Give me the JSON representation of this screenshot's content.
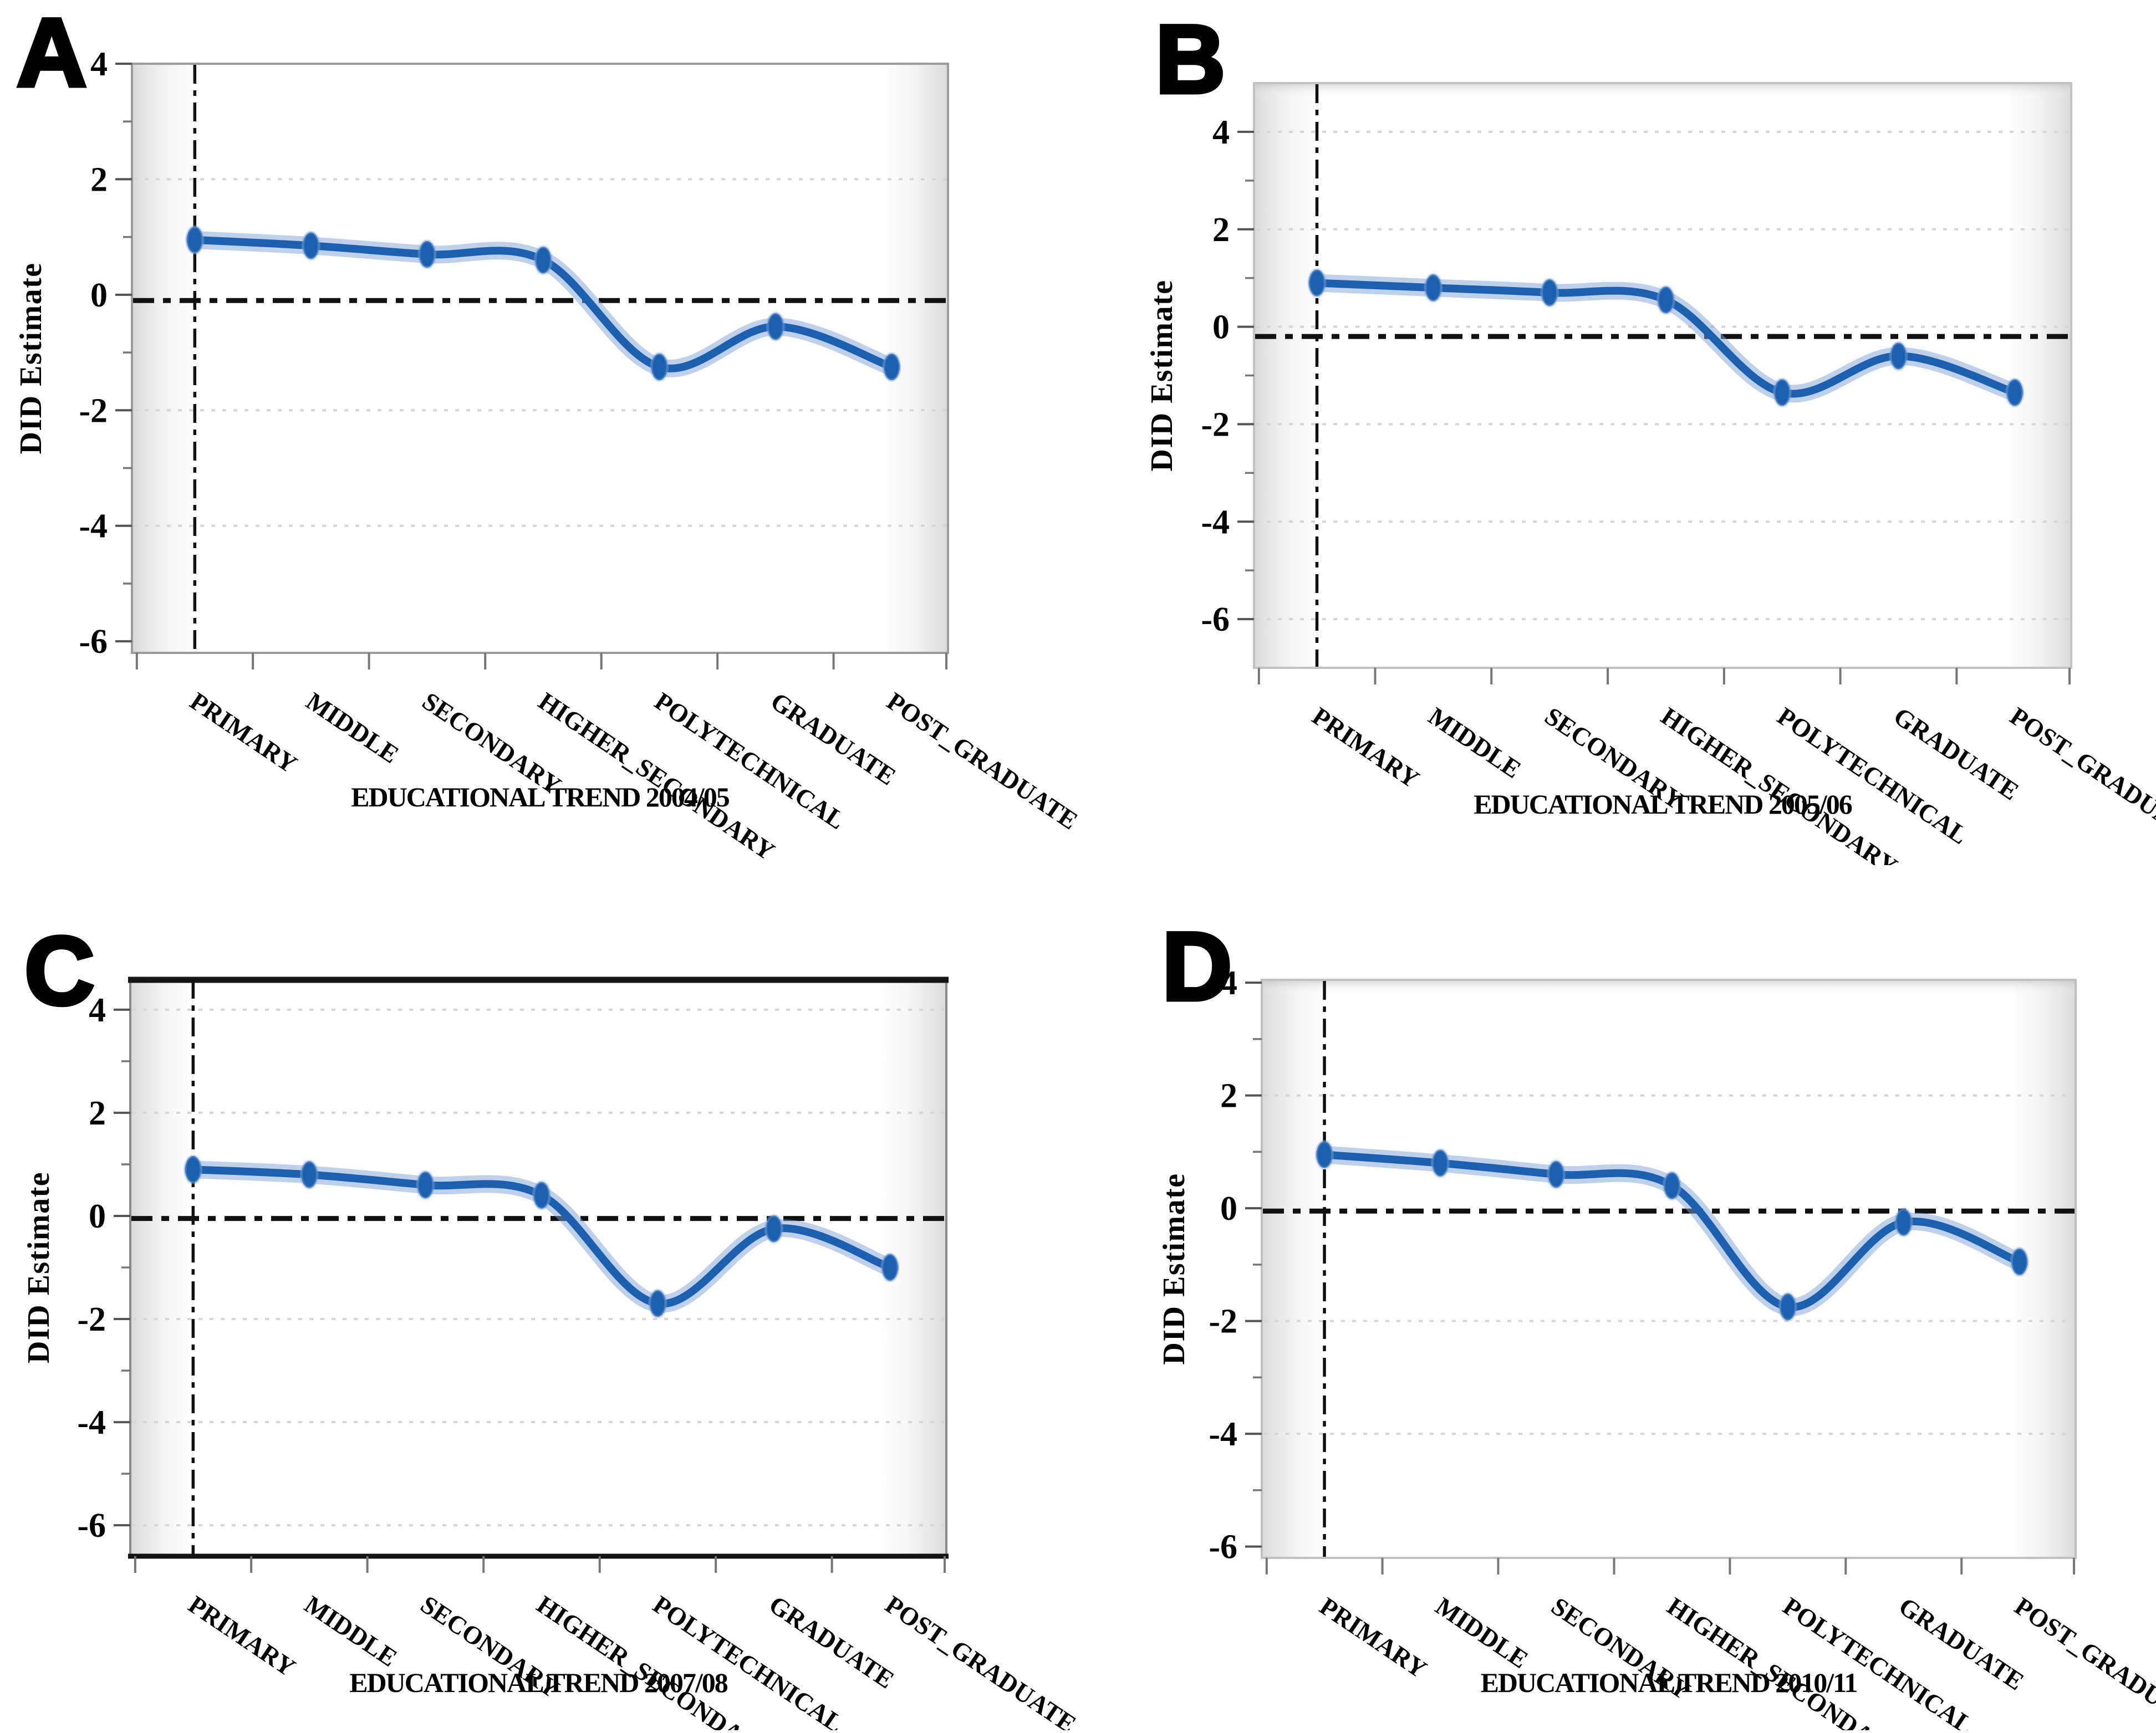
{
  "figure": {
    "ylabel": "DID Estimate",
    "series_color": "#1b5fae",
    "series_halo_color": "rgba(125,162,214,0.5)",
    "grid_color": "#d6d6d6",
    "reference_line_color": "#111111",
    "edge_band_color": "#bdbdbd",
    "text_color": "#000000"
  },
  "chart_data": [
    {
      "panel": "A",
      "type": "line",
      "title": "",
      "xlabel": "EDUCATIONAL TREND 2004/05",
      "ylabel": "DID Estimate",
      "categories": [
        "PRIMARY",
        "MIDDLE",
        "SECONDARY",
        "HIGHER_SECONDARY",
        "POLYTECHNICAL",
        "GRADUATE",
        "POST_GRADUATE"
      ],
      "values": [
        0.95,
        0.85,
        0.7,
        0.6,
        -1.25,
        -0.55,
        -1.25
      ],
      "yticks": [
        4,
        2,
        0,
        -2,
        -4,
        -6
      ],
      "ylim": [
        -6.2,
        4.0
      ],
      "hline": -0.1,
      "vline_category": "PRIMARY",
      "grid": "dotted-horizontal",
      "legend": null
    },
    {
      "panel": "B",
      "type": "line",
      "title": "",
      "xlabel": "EDUCATIONAL TREND 2005/06",
      "ylabel": "DID Estimate",
      "categories": [
        "PRIMARY",
        "MIDDLE",
        "SECONDARY",
        "HIGHER_SECONDARY",
        "POLYTECHNICAL",
        "GRADUATE",
        "POST_GRADUATE"
      ],
      "values": [
        0.9,
        0.8,
        0.7,
        0.55,
        -1.35,
        -0.6,
        -1.35
      ],
      "yticks": [
        4,
        2,
        0,
        -2,
        -4,
        -6
      ],
      "ylim": [
        -7.0,
        5.0
      ],
      "hline": -0.2,
      "vline_category": "PRIMARY",
      "grid": "dotted-horizontal",
      "legend": null
    },
    {
      "panel": "C",
      "type": "line",
      "title": "",
      "xlabel": "EDUCATIONAL TREND 2007/08",
      "ylabel": "DID Estimate",
      "categories": [
        "PRIMARY",
        "MIDDLE",
        "SECONDARY",
        "HIGHER_SECONDARY",
        "POLYTECHNICAL",
        "GRADUATE",
        "POST_GRADUATE"
      ],
      "values": [
        0.9,
        0.8,
        0.6,
        0.4,
        -1.7,
        -0.25,
        -1.0
      ],
      "yticks": [
        4,
        2,
        0,
        -2,
        -4,
        -6
      ],
      "ylim": [
        -6.6,
        4.6
      ],
      "hline": -0.05,
      "vline_category": "PRIMARY",
      "grid": "dotted-horizontal",
      "legend": null
    },
    {
      "panel": "D",
      "type": "line",
      "title": "",
      "xlabel": "EDUCATIONAL TREND 2010/11",
      "ylabel": "DID Estimate",
      "categories": [
        "PRIMARY",
        "MIDDLE",
        "SECONDARY",
        "HIGHER_SECONDARY",
        "POLYTECHNICAL",
        "GRADUATE",
        "POST_GRADUATE"
      ],
      "values": [
        0.95,
        0.8,
        0.6,
        0.4,
        -1.75,
        -0.25,
        -0.95
      ],
      "yticks": [
        4,
        2,
        0,
        -2,
        -4,
        -6
      ],
      "ylim": [
        -6.2,
        4.05
      ],
      "hline": -0.05,
      "vline_category": "PRIMARY",
      "grid": "dotted-horizontal",
      "legend": null
    }
  ]
}
